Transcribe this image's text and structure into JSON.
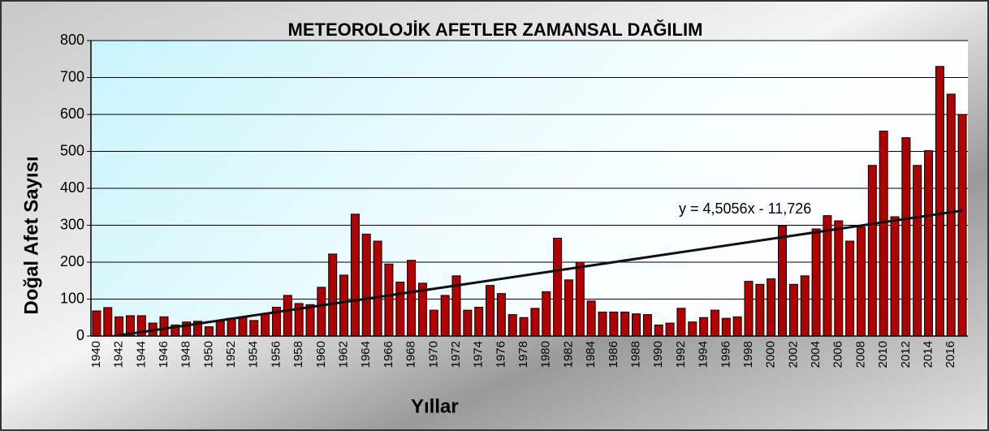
{
  "chart_data": {
    "type": "bar",
    "title": "METEOROLOJİK AFETLER ZAMANSAL DAĞILIM",
    "x_label": "Yıllar",
    "y_label": "Doğal Afet Sayısı",
    "categories": [
      "1940",
      null,
      "1942",
      null,
      "1944",
      null,
      "1946",
      null,
      "1948",
      null,
      "1950",
      null,
      "1952",
      null,
      "1954",
      null,
      "1956",
      null,
      "1958",
      null,
      "1960",
      null,
      "1962",
      null,
      "1964",
      null,
      "1966",
      null,
      "1968",
      null,
      "1970",
      null,
      "1972",
      null,
      "1974",
      null,
      "1976",
      null,
      "1978",
      null,
      "1980",
      null,
      "1982",
      null,
      "1984",
      null,
      "1986",
      null,
      "1988",
      null,
      "1990",
      null,
      "1992",
      null,
      "1994",
      null,
      "1996",
      null,
      "1998",
      null,
      "2000",
      null,
      "2002",
      null,
      "2004",
      null,
      "2006",
      null,
      "2008",
      null,
      "2010",
      null,
      "2012",
      null,
      "2014",
      null,
      "2016",
      null
    ],
    "values": [
      68,
      77,
      52,
      55,
      55,
      35,
      52,
      30,
      38,
      40,
      25,
      40,
      48,
      52,
      42,
      60,
      78,
      110,
      88,
      85,
      132,
      222,
      165,
      330,
      276,
      257,
      195,
      146,
      205,
      143,
      70,
      110,
      163,
      70,
      78,
      137,
      115,
      58,
      50,
      75,
      120,
      265,
      152,
      200,
      95,
      65,
      65,
      65,
      60,
      58,
      30,
      35,
      75,
      38,
      50,
      70,
      48,
      52,
      148,
      140,
      155,
      298,
      140,
      163,
      290,
      326,
      312,
      257,
      295,
      462,
      555,
      323,
      537,
      462,
      502,
      730,
      655,
      600
    ],
    "color": "#b00000",
    "ylim": [
      0,
      800
    ],
    "yticks": [
      0,
      100,
      200,
      300,
      400,
      500,
      600,
      700,
      800
    ],
    "grid": true,
    "trendline": {
      "slope": 4.5056,
      "intercept": -11.726,
      "label": "y = 4,5056x - 11,726"
    }
  }
}
